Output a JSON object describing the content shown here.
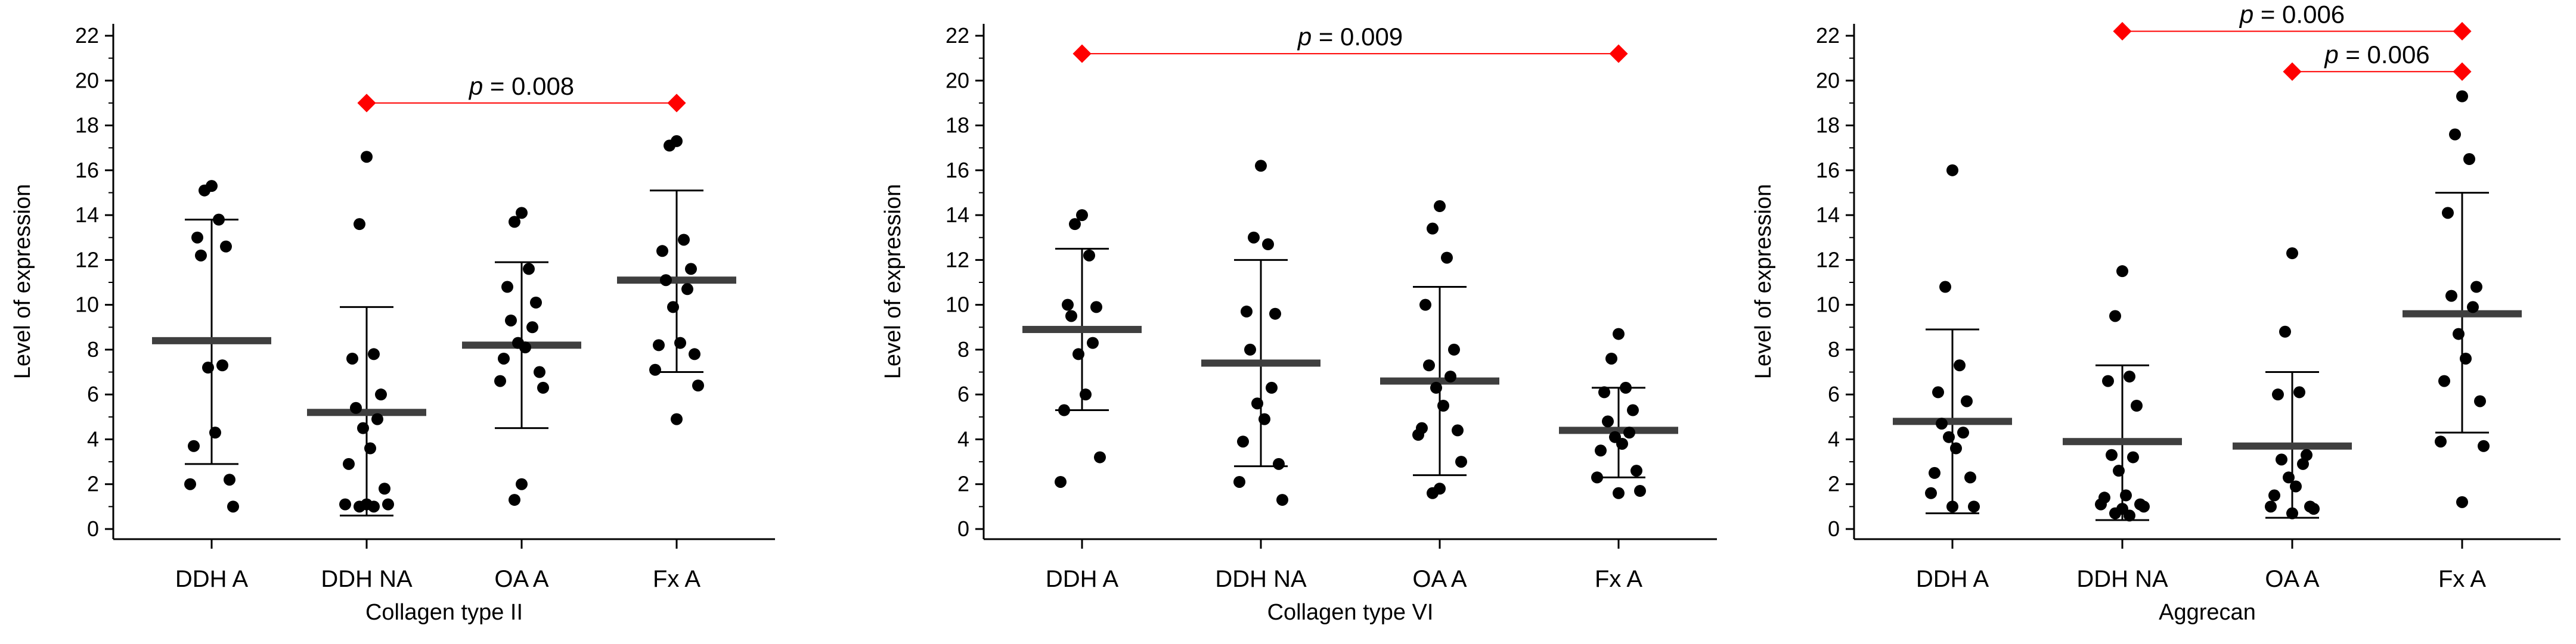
{
  "colors": {
    "points": "#000000",
    "axis": "#000000",
    "mean_bar": "#3f3f3f",
    "sig": "#ff0000"
  },
  "chart_data": [
    {
      "type": "scatter",
      "title": "",
      "xlabel": "Collagen type II",
      "ylabel": "Level of expression",
      "ylim": [
        0,
        22
      ],
      "yticks": [
        0,
        2,
        4,
        6,
        8,
        10,
        12,
        14,
        16,
        18,
        20,
        22
      ],
      "categories": [
        "DDH A",
        "DDH NA",
        "OA A",
        "Fx A"
      ],
      "series": [
        {
          "name": "DDH A",
          "mean": 8.4,
          "sd_low": 2.9,
          "sd_high": 13.8,
          "values": [
            15.3,
            15.1,
            13.8,
            13.0,
            12.6,
            12.2,
            7.3,
            7.2,
            4.3,
            3.7,
            2.2,
            2.0,
            1.0
          ]
        },
        {
          "name": "DDH NA",
          "mean": 5.2,
          "sd_low": 0.6,
          "sd_high": 9.9,
          "values": [
            16.6,
            13.6,
            7.8,
            7.6,
            6.0,
            5.4,
            4.9,
            4.5,
            3.6,
            2.9,
            1.8,
            1.1,
            1.1,
            1.1,
            1.0,
            1.0
          ]
        },
        {
          "name": "OA A",
          "mean": 8.2,
          "sd_low": 4.5,
          "sd_high": 11.9,
          "values": [
            14.1,
            13.7,
            11.6,
            10.8,
            10.1,
            9.3,
            9.0,
            8.3,
            8.1,
            7.6,
            7.0,
            6.6,
            6.3,
            2.0,
            1.3
          ]
        },
        {
          "name": "Fx A",
          "mean": 11.1,
          "sd_low": 7.0,
          "sd_high": 15.1,
          "values": [
            17.3,
            17.1,
            12.9,
            12.4,
            11.6,
            11.1,
            10.7,
            9.9,
            8.3,
            8.2,
            7.8,
            7.1,
            6.4,
            4.9
          ]
        }
      ],
      "significance": [
        {
          "from": "DDH NA",
          "to": "Fx A",
          "y": 19.0,
          "label_p": "p",
          "label_value": "= 0.008"
        }
      ]
    },
    {
      "type": "scatter",
      "title": "",
      "xlabel": "Collagen type VI",
      "ylabel": "Level of expression",
      "ylim": [
        0,
        22
      ],
      "yticks": [
        0,
        2,
        4,
        6,
        8,
        10,
        12,
        14,
        16,
        18,
        20,
        22
      ],
      "categories": [
        "DDH A",
        "DDH NA",
        "OA A",
        "Fx A"
      ],
      "series": [
        {
          "name": "DDH A",
          "mean": 8.9,
          "sd_low": 5.3,
          "sd_high": 12.5,
          "values": [
            14.0,
            13.6,
            12.2,
            10.0,
            9.9,
            9.5,
            8.3,
            7.8,
            6.0,
            5.3,
            3.2,
            2.1
          ]
        },
        {
          "name": "DDH NA",
          "mean": 7.4,
          "sd_low": 2.8,
          "sd_high": 12.0,
          "values": [
            16.2,
            13.0,
            12.7,
            9.7,
            9.6,
            8.0,
            6.3,
            5.6,
            4.9,
            3.9,
            2.9,
            2.1,
            1.3
          ]
        },
        {
          "name": "OA A",
          "mean": 6.6,
          "sd_low": 2.4,
          "sd_high": 10.8,
          "values": [
            14.4,
            13.4,
            12.1,
            10.0,
            8.0,
            7.3,
            6.8,
            6.3,
            5.5,
            4.5,
            4.4,
            4.2,
            3.0,
            1.8,
            1.6
          ]
        },
        {
          "name": "Fx A",
          "mean": 4.4,
          "sd_low": 2.3,
          "sd_high": 6.3,
          "values": [
            8.7,
            7.6,
            6.3,
            6.1,
            5.3,
            4.8,
            4.3,
            4.1,
            3.8,
            3.5,
            2.6,
            2.3,
            1.7,
            1.6
          ]
        }
      ],
      "significance": [
        {
          "from": "DDH A",
          "to": "Fx A",
          "y": 21.2,
          "label_p": "p",
          "label_value": "= 0.009"
        }
      ]
    },
    {
      "type": "scatter",
      "title": "",
      "xlabel": "Aggrecan",
      "ylabel": "Level of expression",
      "ylim": [
        0,
        22
      ],
      "yticks": [
        0,
        2,
        4,
        6,
        8,
        10,
        12,
        14,
        16,
        18,
        20,
        22
      ],
      "categories": [
        "DDH A",
        "DDH NA",
        "OA A",
        "Fx A"
      ],
      "series": [
        {
          "name": "DDH A",
          "mean": 4.8,
          "sd_low": 0.7,
          "sd_high": 8.9,
          "values": [
            16.0,
            10.8,
            7.3,
            6.1,
            5.7,
            4.7,
            4.3,
            4.1,
            3.6,
            2.5,
            2.3,
            1.6,
            1.0,
            1.0
          ]
        },
        {
          "name": "DDH NA",
          "mean": 3.9,
          "sd_low": 0.4,
          "sd_high": 7.3,
          "values": [
            11.5,
            9.5,
            6.8,
            6.6,
            5.5,
            3.3,
            3.2,
            2.6,
            1.5,
            1.4,
            1.1,
            1.1,
            1.0,
            0.9,
            0.7,
            0.6
          ]
        },
        {
          "name": "OA A",
          "mean": 3.7,
          "sd_low": 0.5,
          "sd_high": 7.0,
          "values": [
            12.3,
            8.8,
            6.1,
            6.0,
            3.3,
            3.1,
            2.9,
            2.3,
            1.9,
            1.5,
            1.0,
            1.0,
            0.9,
            0.7
          ]
        },
        {
          "name": "Fx A",
          "mean": 9.6,
          "sd_low": 4.3,
          "sd_high": 15.0,
          "values": [
            19.3,
            17.6,
            16.5,
            14.1,
            10.8,
            10.4,
            9.9,
            8.7,
            7.6,
            6.6,
            5.7,
            3.9,
            3.7,
            1.2
          ]
        }
      ],
      "significance": [
        {
          "from": "DDH NA",
          "to": "Fx A",
          "y": 22.2,
          "label_p": "p",
          "label_value": "= 0.006"
        },
        {
          "from": "OA A",
          "to": "Fx A",
          "y": 20.4,
          "label_p": "p",
          "label_value": "= 0.006"
        }
      ]
    }
  ]
}
